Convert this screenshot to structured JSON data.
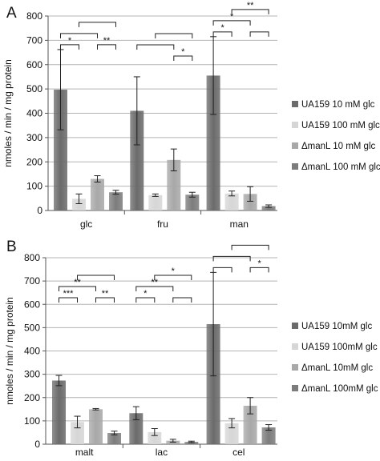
{
  "colors": {
    "s1": "#6b6b6b",
    "s2": "#d6d6d6",
    "s3": "#a8a8a8",
    "s4": "#7c7c7c",
    "grid": "#b4b4b4",
    "axis": "#555555",
    "text": "#111111"
  },
  "chart_data": [
    {
      "panel_label": "A",
      "type": "bar",
      "ylabel": "nmoles / min / mg protein",
      "ylim": [
        0,
        800
      ],
      "yticks": [
        "0",
        "100",
        "200",
        "300",
        "400",
        "500",
        "600",
        "700",
        "800"
      ],
      "grid": true,
      "legend_position": "right",
      "categories": [
        "glc",
        "fru",
        "man"
      ],
      "series": [
        {
          "name": "UA159 10 mM glc",
          "color": "#6b6b6b",
          "values": [
            497,
            410,
            555
          ],
          "err": [
            165,
            140,
            160
          ]
        },
        {
          "name": "UA159 100 mM glc",
          "color": "#d6d6d6",
          "values": [
            48,
            63,
            70
          ],
          "err": [
            20,
            5,
            10
          ]
        },
        {
          "name": "ΔmanL 10 mM glc",
          "color": "#a8a8a8",
          "values": [
            130,
            208,
            68
          ],
          "err": [
            13,
            45,
            30
          ]
        },
        {
          "name": "ΔmanL 100 mM glc",
          "color": "#7c7c7c",
          "values": [
            75,
            65,
            18
          ],
          "err": [
            8,
            10,
            5
          ]
        }
      ],
      "significance": [
        {
          "category": 0,
          "from": 0,
          "to": 1,
          "level": 1,
          "label": "*"
        },
        {
          "category": 0,
          "from": 2,
          "to": 3,
          "level": 1,
          "label": "**"
        },
        {
          "category": 0,
          "from": 0,
          "to": 2,
          "level": 2,
          "label": ""
        },
        {
          "category": 0,
          "from": 1,
          "to": 3,
          "level": 3,
          "label": ""
        },
        {
          "category": 1,
          "from": 2,
          "to": 3,
          "level": 1,
          "label": "*"
        },
        {
          "category": 1,
          "from": 0,
          "to": 2,
          "level": 2,
          "label": ""
        },
        {
          "category": 1,
          "from": 1,
          "to": 3,
          "level": 3,
          "label": ""
        },
        {
          "category": 2,
          "from": 0,
          "to": 1,
          "level": 1,
          "label": "*"
        },
        {
          "category": 2,
          "from": 2,
          "to": 3,
          "level": 1,
          "label": ""
        },
        {
          "category": 2,
          "from": 0,
          "to": 2,
          "level": 2,
          "label": "*"
        },
        {
          "category": 2,
          "from": 1,
          "to": 3,
          "level": 3,
          "label": "**"
        }
      ]
    },
    {
      "panel_label": "B",
      "type": "bar",
      "ylabel": "nmoles / min / mg protein",
      "ylim": [
        0,
        800
      ],
      "yticks": [
        "0",
        "100",
        "200",
        "300",
        "400",
        "500",
        "600",
        "700",
        "800"
      ],
      "grid": true,
      "legend_position": "right",
      "categories": [
        "malt",
        "lac",
        "cel"
      ],
      "series": [
        {
          "name": "UA159 10mM glc",
          "color": "#6b6b6b",
          "values": [
            273,
            133,
            515
          ],
          "err": [
            22,
            28,
            222
          ]
        },
        {
          "name": "UA159 100mM glc",
          "color": "#d6d6d6",
          "values": [
            95,
            52,
            90
          ],
          "err": [
            25,
            15,
            20
          ]
        },
        {
          "name": "ΔmanL 10mM glc",
          "color": "#a8a8a8",
          "values": [
            150,
            15,
            165
          ],
          "err": [
            3,
            6,
            35
          ]
        },
        {
          "name": "ΔmanL 100mM glc",
          "color": "#7c7c7c",
          "values": [
            48,
            10,
            72
          ],
          "err": [
            8,
            3,
            12
          ]
        }
      ],
      "significance": [
        {
          "category": 0,
          "from": 0,
          "to": 1,
          "level": 1,
          "label": "***"
        },
        {
          "category": 0,
          "from": 2,
          "to": 3,
          "level": 1,
          "label": "**"
        },
        {
          "category": 0,
          "from": 0,
          "to": 2,
          "level": 2,
          "label": "**"
        },
        {
          "category": 0,
          "from": 1,
          "to": 3,
          "level": 3,
          "label": ""
        },
        {
          "category": 1,
          "from": 0,
          "to": 1,
          "level": 1,
          "label": "*"
        },
        {
          "category": 1,
          "from": 2,
          "to": 3,
          "level": 1,
          "label": ""
        },
        {
          "category": 1,
          "from": 0,
          "to": 2,
          "level": 2,
          "label": "**"
        },
        {
          "category": 1,
          "from": 1,
          "to": 3,
          "level": 3,
          "label": "*"
        },
        {
          "category": 2,
          "from": 0,
          "to": 1,
          "level": 1,
          "label": ""
        },
        {
          "category": 2,
          "from": 2,
          "to": 3,
          "level": 1,
          "label": "*"
        },
        {
          "category": 2,
          "from": 0,
          "to": 2,
          "level": 2,
          "label": ""
        },
        {
          "category": 2,
          "from": 1,
          "to": 3,
          "level": 3,
          "label": ""
        }
      ]
    }
  ]
}
